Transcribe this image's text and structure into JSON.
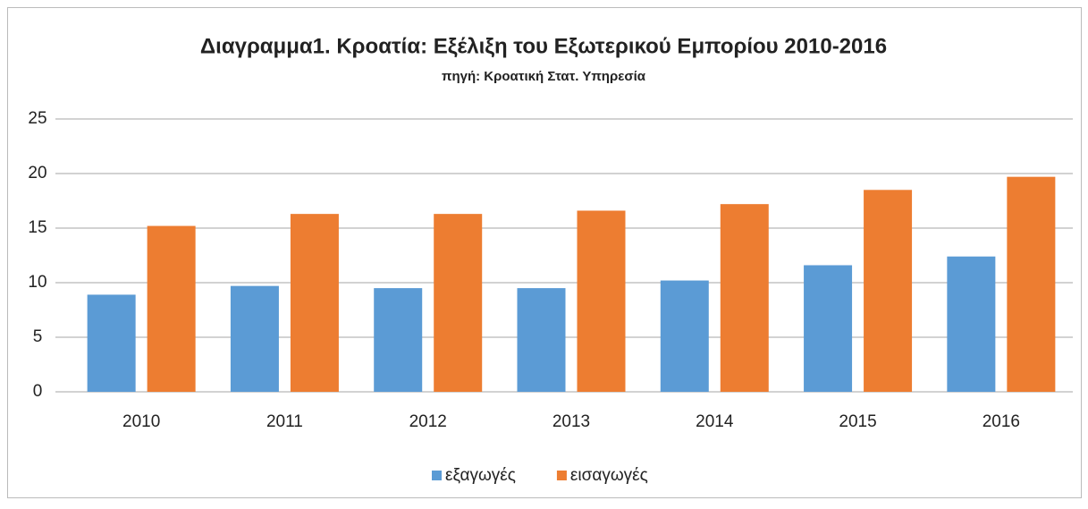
{
  "chart_data": {
    "type": "bar",
    "title": "Διαγραμμα1. Κροατία: Εξέλιξη του Εξωτερικού Εμπορίου 2010-2016",
    "subtitle": "πηγή: Κροατική Στατ. Υπηρεσία",
    "categories": [
      "2010",
      "2011",
      "2012",
      "2013",
      "2014",
      "2015",
      "2016"
    ],
    "series": [
      {
        "name": "εξαγωγές",
        "color": "#5b9bd5",
        "values": [
          8.9,
          9.7,
          9.5,
          9.5,
          10.2,
          11.6,
          12.4
        ]
      },
      {
        "name": "εισαγωγές",
        "color": "#ed7d31",
        "values": [
          15.2,
          16.3,
          16.3,
          16.6,
          17.2,
          18.5,
          19.7
        ]
      }
    ],
    "ylim": [
      0,
      25
    ],
    "yticks": [
      0,
      5,
      10,
      15,
      20,
      25
    ],
    "grid": true,
    "legend": "bottom"
  }
}
